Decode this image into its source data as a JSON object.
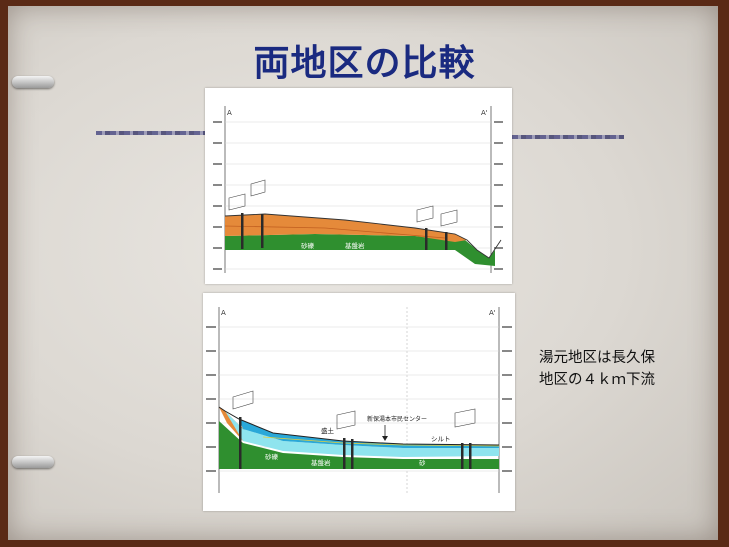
{
  "slide": {
    "title": "両地区の比較",
    "caption_lines": [
      "湯元地区は長久保",
      "地区の４ｋｍ下流"
    ]
  },
  "figure_top": {
    "left_marker": "A",
    "right_marker": "A'",
    "layer_labels": [
      "砂礫",
      "基盤岩"
    ]
  },
  "figure_bottom": {
    "left_marker": "A",
    "right_marker": "A'",
    "layer_labels": [
      "盛土",
      "砂礫",
      "シルト",
      "基盤岩",
      "砂"
    ],
    "annotation": "新保湯本市民センター"
  },
  "colors": {
    "title": "#1a2a80",
    "clay_orange": "#e58a3a",
    "gravel_green": "#2f8f2f",
    "water_cyan": "#8fe4ee",
    "water_blue": "#2aa8d8",
    "frame_brown": "#5a2a16"
  }
}
